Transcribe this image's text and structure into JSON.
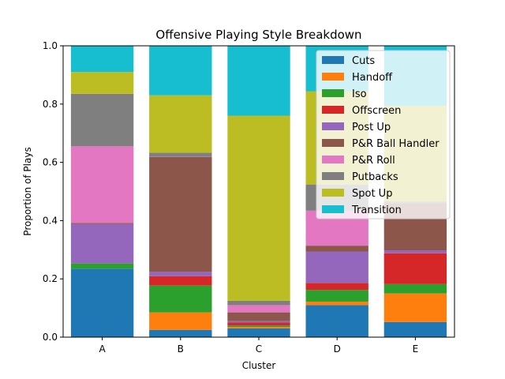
{
  "chart_data": {
    "type": "bar",
    "stacked": true,
    "title": "Offensive Playing Style Breakdown",
    "xlabel": "Cluster",
    "ylabel": "Proportion of Plays",
    "ylim": [
      0,
      1.0
    ],
    "yticks": [
      "0.0",
      "0.2",
      "0.4",
      "0.6",
      "0.8",
      "1.0"
    ],
    "categories": [
      "A",
      "B",
      "C",
      "D",
      "E"
    ],
    "legend_position": "top-right",
    "grid": false,
    "series": [
      {
        "name": "Cuts",
        "color": "#1f77b4",
        "values": [
          0.235,
          0.025,
          0.03,
          0.11,
          0.052
        ]
      },
      {
        "name": "Handoff",
        "color": "#ff7f0e",
        "values": [
          0.0,
          0.06,
          0.005,
          0.012,
          0.098
        ]
      },
      {
        "name": "Iso",
        "color": "#2ca02c",
        "values": [
          0.018,
          0.092,
          0.005,
          0.04,
          0.032
        ]
      },
      {
        "name": "Offscreen",
        "color": "#d62728",
        "values": [
          0.0,
          0.032,
          0.01,
          0.024,
          0.106
        ]
      },
      {
        "name": "Post Up",
        "color": "#9467bd",
        "values": [
          0.135,
          0.015,
          0.005,
          0.108,
          0.01
        ]
      },
      {
        "name": "P&R Ball Handler",
        "color": "#8c564b",
        "values": [
          0.004,
          0.394,
          0.03,
          0.02,
          0.16
        ]
      },
      {
        "name": "P&R Roll",
        "color": "#e377c2",
        "values": [
          0.263,
          0.001,
          0.025,
          0.12,
          0.0
        ]
      },
      {
        "name": "Putbacks",
        "color": "#7f7f7f",
        "values": [
          0.18,
          0.014,
          0.015,
          0.09,
          0.008
        ]
      },
      {
        "name": "Spot Up",
        "color": "#bcbd22",
        "values": [
          0.075,
          0.197,
          0.635,
          0.32,
          0.328
        ]
      },
      {
        "name": "Transition",
        "color": "#17becf",
        "values": [
          0.09,
          0.17,
          0.24,
          0.156,
          0.206
        ]
      }
    ]
  }
}
